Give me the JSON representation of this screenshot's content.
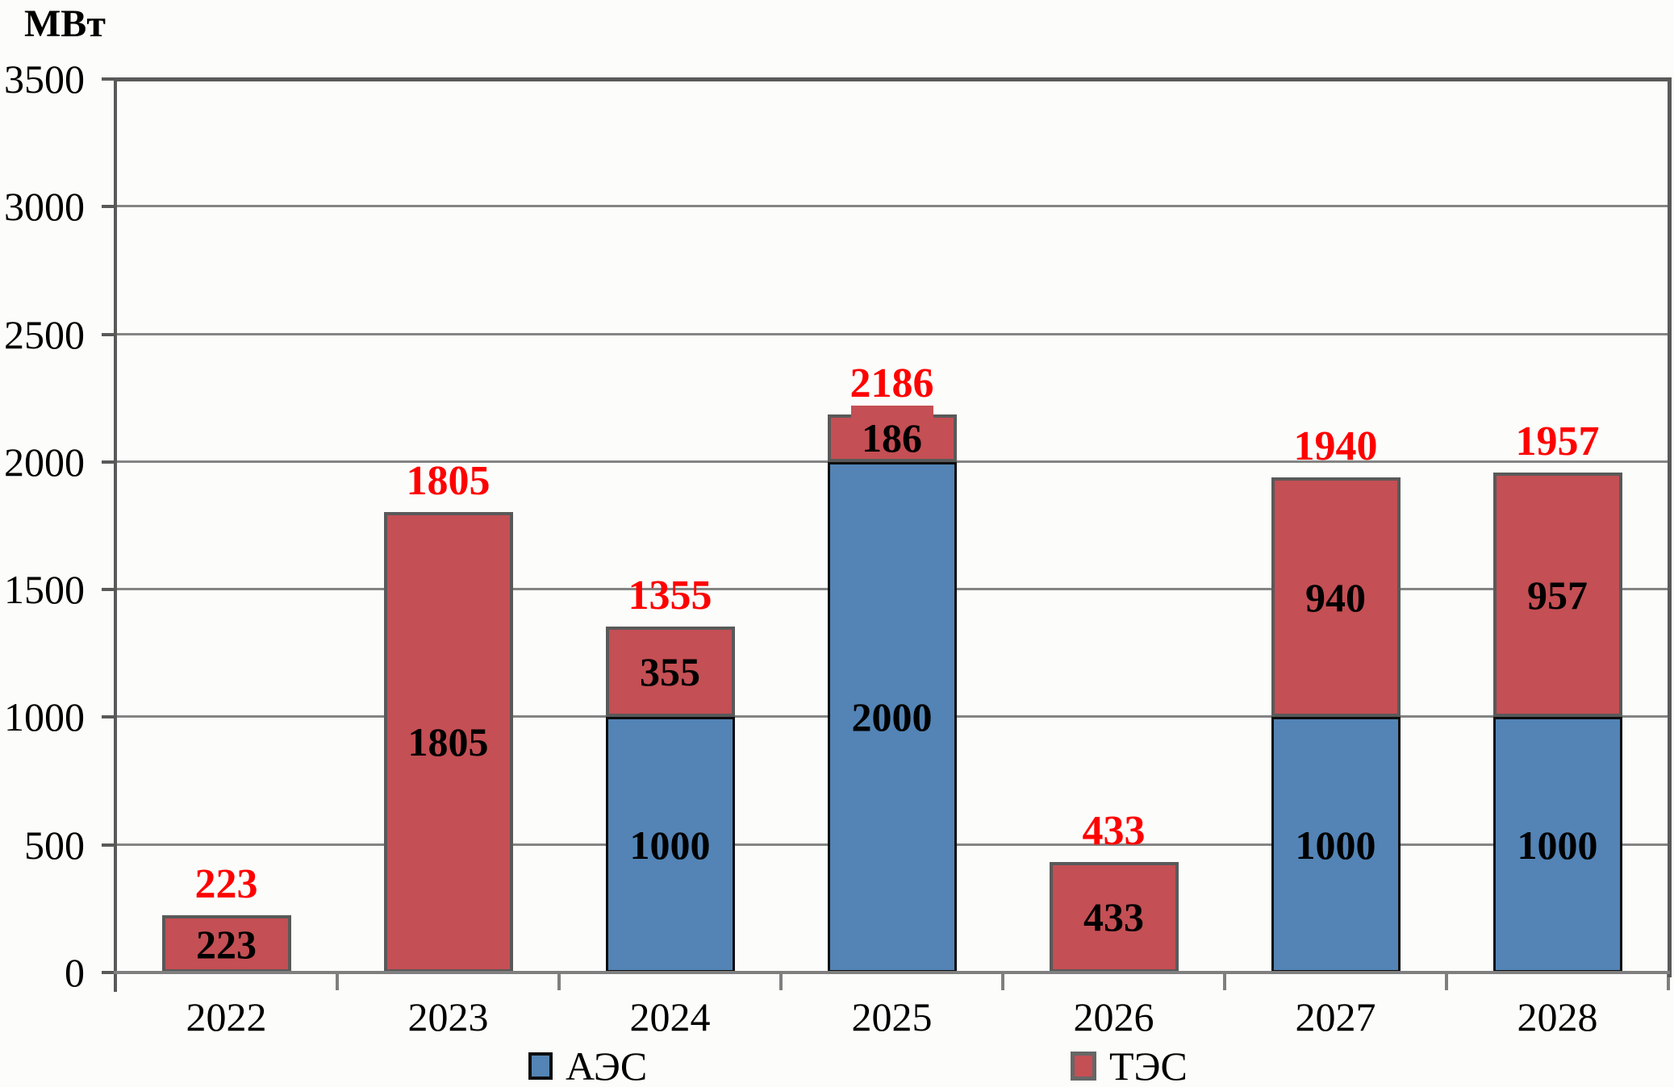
{
  "chart_data": {
    "type": "bar",
    "stacked": true,
    "y_axis_title": "МВт",
    "categories": [
      "2022",
      "2023",
      "2024",
      "2025",
      "2026",
      "2027",
      "2028"
    ],
    "series": [
      {
        "name": "АЭС",
        "values": [
          0,
          0,
          1000,
          2000,
          0,
          1000,
          1000
        ],
        "color": "#5384B5",
        "border_color": "#0D0D0D",
        "legend_swatch_border": "#0D0D0D"
      },
      {
        "name": "ТЭС",
        "values": [
          223,
          1805,
          355,
          186,
          433,
          940,
          957
        ],
        "color": "#C44F54",
        "border_color": "#595959",
        "legend_swatch_border": "#666666"
      }
    ],
    "totals": [
      223,
      1805,
      1355,
      2186,
      433,
      1940,
      1957
    ],
    "segment_labels": [
      [
        "",
        "",
        "1000",
        "2000",
        "",
        "1000",
        "1000"
      ],
      [
        "223",
        "1805",
        "355",
        "186",
        "433",
        "940",
        "957"
      ]
    ],
    "ylim": [
      0,
      3500
    ],
    "yticks": [
      0,
      500,
      1000,
      1500,
      2000,
      2500,
      3000,
      3500
    ],
    "grid": true,
    "legend_position": "bottom",
    "segment_label_color": "#000000",
    "total_label_color": "#FF0000",
    "axis_color": "#595959",
    "x_axis_color": "#7F7F7F",
    "gridline_color": "#848484",
    "cap_artifact_category": "2025"
  }
}
